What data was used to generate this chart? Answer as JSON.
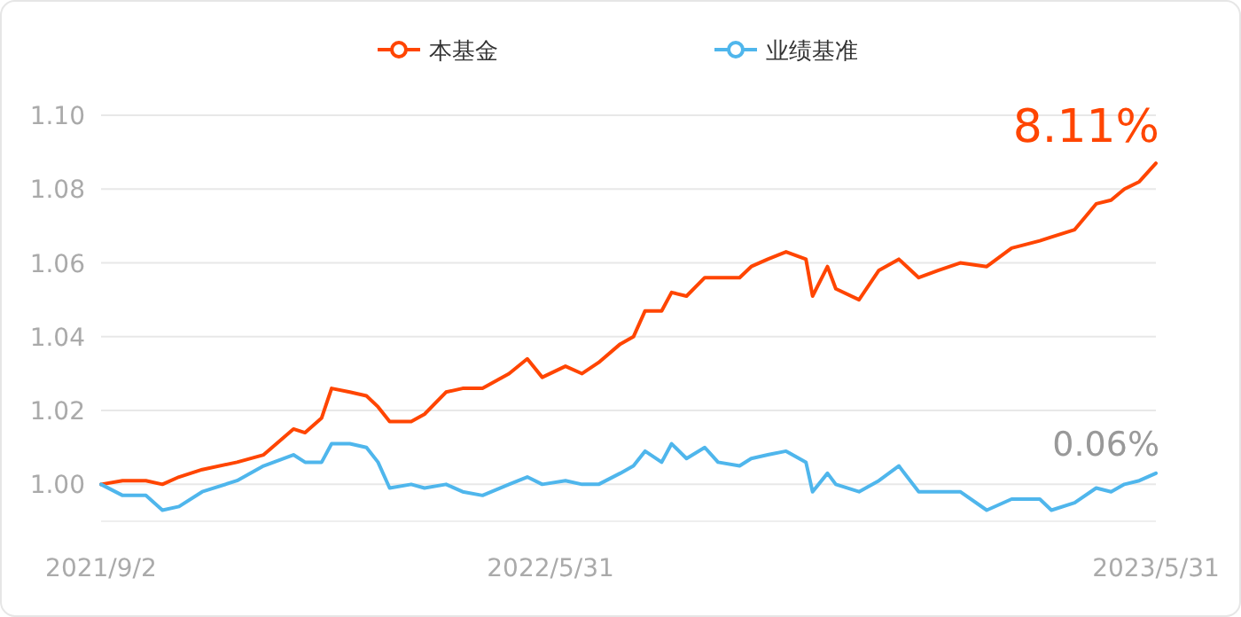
{
  "chart_data": {
    "type": "line",
    "legend": "top",
    "grid": "y",
    "line_style": "solid",
    "x": [
      "2021-09-02",
      "2021-09-15",
      "2021-09-29",
      "2021-10-09",
      "2021-10-19",
      "2021-11-02",
      "2021-11-23",
      "2021-12-09",
      "2021-12-27",
      "2022-01-03",
      "2022-01-13",
      "2022-01-19",
      "2022-01-30",
      "2022-02-09",
      "2022-02-16",
      "2022-02-23",
      "2022-03-08",
      "2022-03-16",
      "2022-03-29",
      "2022-04-08",
      "2022-04-20",
      "2022-05-06",
      "2022-05-17",
      "2022-05-26",
      "2022-06-09",
      "2022-06-19",
      "2022-06-29",
      "2022-07-12",
      "2022-07-20",
      "2022-07-27",
      "2022-08-06",
      "2022-08-12",
      "2022-08-21",
      "2022-09-01",
      "2022-09-09",
      "2022-09-22",
      "2022-09-29",
      "2022-10-09",
      "2022-10-20",
      "2022-11-01",
      "2022-11-05",
      "2022-11-14",
      "2022-11-19",
      "2022-12-03",
      "2022-12-15",
      "2022-12-27",
      "2023-01-08",
      "2023-01-20",
      "2023-02-02",
      "2023-02-18",
      "2023-03-05",
      "2023-03-22",
      "2023-03-29",
      "2023-04-12",
      "2023-04-25",
      "2023-05-04",
      "2023-05-12",
      "2023-05-21",
      "2023-05-31"
    ],
    "series": [
      {
        "name": "本基金",
        "color": "#ff4500",
        "values": [
          1.0,
          1.001,
          1.001,
          1.0,
          1.002,
          1.004,
          1.006,
          1.008,
          1.015,
          1.014,
          1.018,
          1.026,
          1.025,
          1.024,
          1.021,
          1.017,
          1.017,
          1.019,
          1.025,
          1.026,
          1.026,
          1.03,
          1.034,
          1.029,
          1.032,
          1.03,
          1.033,
          1.038,
          1.04,
          1.047,
          1.047,
          1.052,
          1.051,
          1.056,
          1.056,
          1.056,
          1.059,
          1.061,
          1.063,
          1.061,
          1.051,
          1.059,
          1.053,
          1.05,
          1.058,
          1.061,
          1.056,
          1.058,
          1.06,
          1.059,
          1.064,
          1.066,
          1.067,
          1.069,
          1.076,
          1.077,
          1.08,
          1.082,
          1.087
        ]
      },
      {
        "name": "业绩基准",
        "color": "#4fb6ec",
        "values": [
          1.0,
          0.997,
          0.997,
          0.993,
          0.994,
          0.998,
          1.001,
          1.005,
          1.008,
          1.006,
          1.006,
          1.011,
          1.011,
          1.01,
          1.006,
          0.999,
          1.0,
          0.999,
          1.0,
          0.998,
          0.997,
          1.0,
          1.002,
          1.0,
          1.001,
          1.0,
          1.0,
          1.003,
          1.005,
          1.009,
          1.006,
          1.011,
          1.007,
          1.01,
          1.006,
          1.005,
          1.007,
          1.008,
          1.009,
          1.006,
          0.998,
          1.003,
          1.0,
          0.998,
          1.001,
          1.005,
          0.998,
          0.998,
          0.998,
          0.993,
          0.996,
          0.996,
          0.993,
          0.995,
          0.999,
          0.998,
          1.0,
          1.001,
          1.003
        ]
      }
    ],
    "xlim": [
      "2021-09-02",
      "2023-05-31"
    ],
    "xticks": [
      {
        "value": "2021-09-02",
        "label": "2021/9/2"
      },
      {
        "value": "2022-05-31",
        "label": "2022/5/31"
      },
      {
        "value": "2023-05-31",
        "label": "2023/5/31"
      }
    ],
    "ylim": [
      0.99,
      1.1
    ],
    "yticks": [
      {
        "value": 1.0,
        "label": "1.00"
      },
      {
        "value": 1.02,
        "label": "1.02"
      },
      {
        "value": 1.04,
        "label": "1.04"
      },
      {
        "value": 1.06,
        "label": "1.06"
      },
      {
        "value": 1.08,
        "label": "1.08"
      },
      {
        "value": 1.1,
        "label": "1.10"
      }
    ],
    "annotations": [
      {
        "text": "8.11%",
        "x": "2023-05-31",
        "y": 1.087
      },
      {
        "text": "0.06%",
        "x": "2023-05-31",
        "y": 1.003
      }
    ]
  }
}
